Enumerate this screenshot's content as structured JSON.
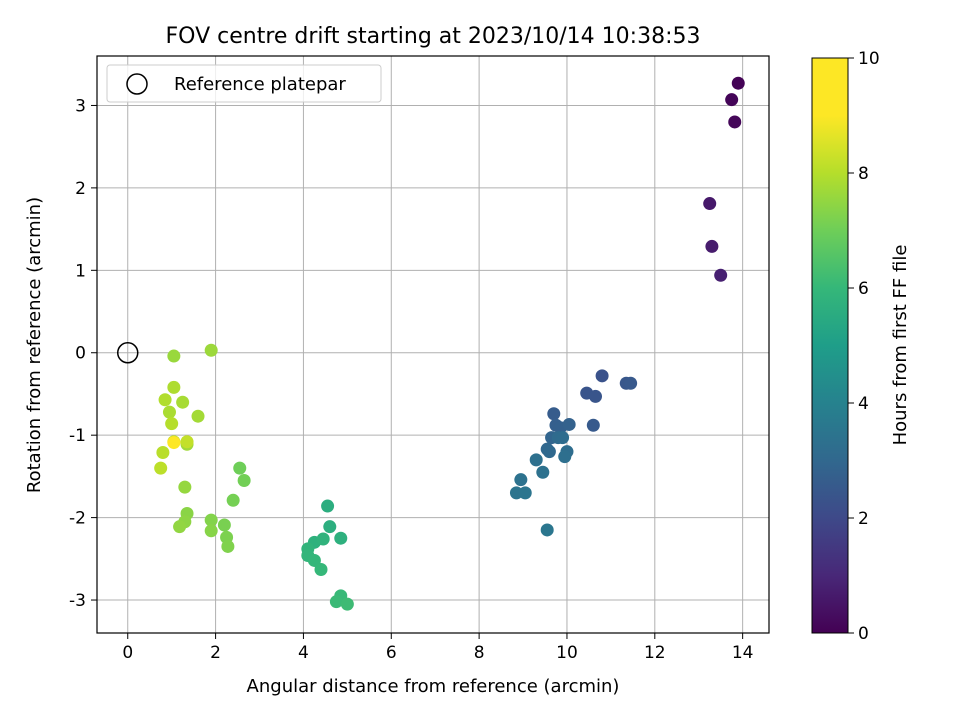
{
  "chart_data": {
    "type": "scatter",
    "title": "FOV centre drift starting at 2023/10/14 10:38:53",
    "xlabel": "Angular distance from reference (arcmin)",
    "ylabel": "Rotation from reference (arcmin)",
    "xlim": [
      -0.7,
      14.6
    ],
    "ylim": [
      -3.4,
      3.6
    ],
    "xticks": [
      0,
      2,
      4,
      6,
      8,
      10,
      12,
      14
    ],
    "yticks": [
      -3,
      -2,
      -1,
      0,
      1,
      2,
      3
    ],
    "grid": true,
    "legend": {
      "location": "upper-left",
      "entries": [
        "Reference platepar"
      ]
    },
    "colorbar": {
      "label": "Hours from first FF file",
      "colormap": "viridis",
      "range": [
        0,
        10
      ],
      "ticks": [
        0,
        2,
        4,
        6,
        8,
        10
      ]
    },
    "reference": {
      "x": 0,
      "y": 0
    },
    "series": [
      {
        "x": [
          13.9,
          13.75,
          13.82,
          13.25,
          13.3,
          13.5,
          10.8,
          10.45,
          10.65,
          11.35,
          11.45,
          10.6,
          9.7,
          9.75,
          9.85,
          10.05,
          9.65,
          9.55,
          9.6,
          9.8,
          9.9,
          10.0,
          9.95,
          9.3,
          9.45,
          8.95,
          8.85,
          9.05,
          9.55,
          4.55,
          4.6,
          4.85,
          4.25,
          4.45,
          4.1,
          4.1,
          4.25,
          4.4,
          4.85,
          4.75,
          5.0,
          2.55,
          2.65,
          2.4,
          2.2,
          2.25,
          2.28,
          1.9,
          1.9,
          1.35,
          1.3,
          1.18,
          1.3,
          1.05,
          1.9,
          1.35,
          1.6,
          1.25,
          0.95,
          1.05,
          0.85,
          1.0,
          0.8,
          0.75,
          1.05,
          1.35,
          1.05
        ],
        "y": [
          3.27,
          3.07,
          2.8,
          1.81,
          1.29,
          0.94,
          -0.28,
          -0.49,
          -0.53,
          -0.37,
          -0.37,
          -0.88,
          -0.74,
          -0.88,
          -0.91,
          -0.87,
          -1.03,
          -1.17,
          -1.2,
          -1.03,
          -1.03,
          -1.2,
          -1.26,
          -1.3,
          -1.45,
          -1.54,
          -1.7,
          -1.7,
          -2.15,
          -1.86,
          -2.11,
          -2.25,
          -2.3,
          -2.26,
          -2.38,
          -2.46,
          -2.52,
          -2.63,
          -2.95,
          -3.02,
          -3.05,
          -1.4,
          -1.55,
          -1.79,
          -2.09,
          -2.24,
          -2.35,
          -2.03,
          -2.16,
          -1.95,
          -2.05,
          -2.11,
          -1.63,
          -0.04,
          0.03,
          -1.11,
          -0.77,
          -0.6,
          -0.72,
          -0.42,
          -0.57,
          -0.86,
          -1.21,
          -1.4,
          -1.08,
          -1.08,
          -1.09
        ],
        "hours": [
          0.05,
          0.1,
          0.15,
          0.6,
          0.7,
          0.8,
          2.3,
          2.35,
          2.4,
          2.45,
          2.5,
          2.55,
          2.6,
          2.7,
          2.75,
          2.8,
          2.9,
          3.0,
          3.05,
          3.1,
          3.15,
          3.2,
          3.25,
          3.3,
          3.35,
          3.4,
          3.45,
          3.5,
          3.55,
          5.6,
          5.65,
          5.7,
          5.75,
          5.8,
          5.85,
          5.9,
          5.95,
          6.0,
          6.05,
          6.1,
          6.15,
          7.0,
          7.05,
          7.1,
          7.15,
          7.2,
          7.25,
          7.3,
          7.35,
          7.4,
          7.45,
          7.5,
          7.55,
          7.6,
          7.65,
          7.7,
          7.75,
          7.8,
          7.85,
          7.9,
          7.95,
          8.0,
          8.05,
          8.1,
          8.15,
          8.2,
          10.0
        ]
      }
    ]
  }
}
